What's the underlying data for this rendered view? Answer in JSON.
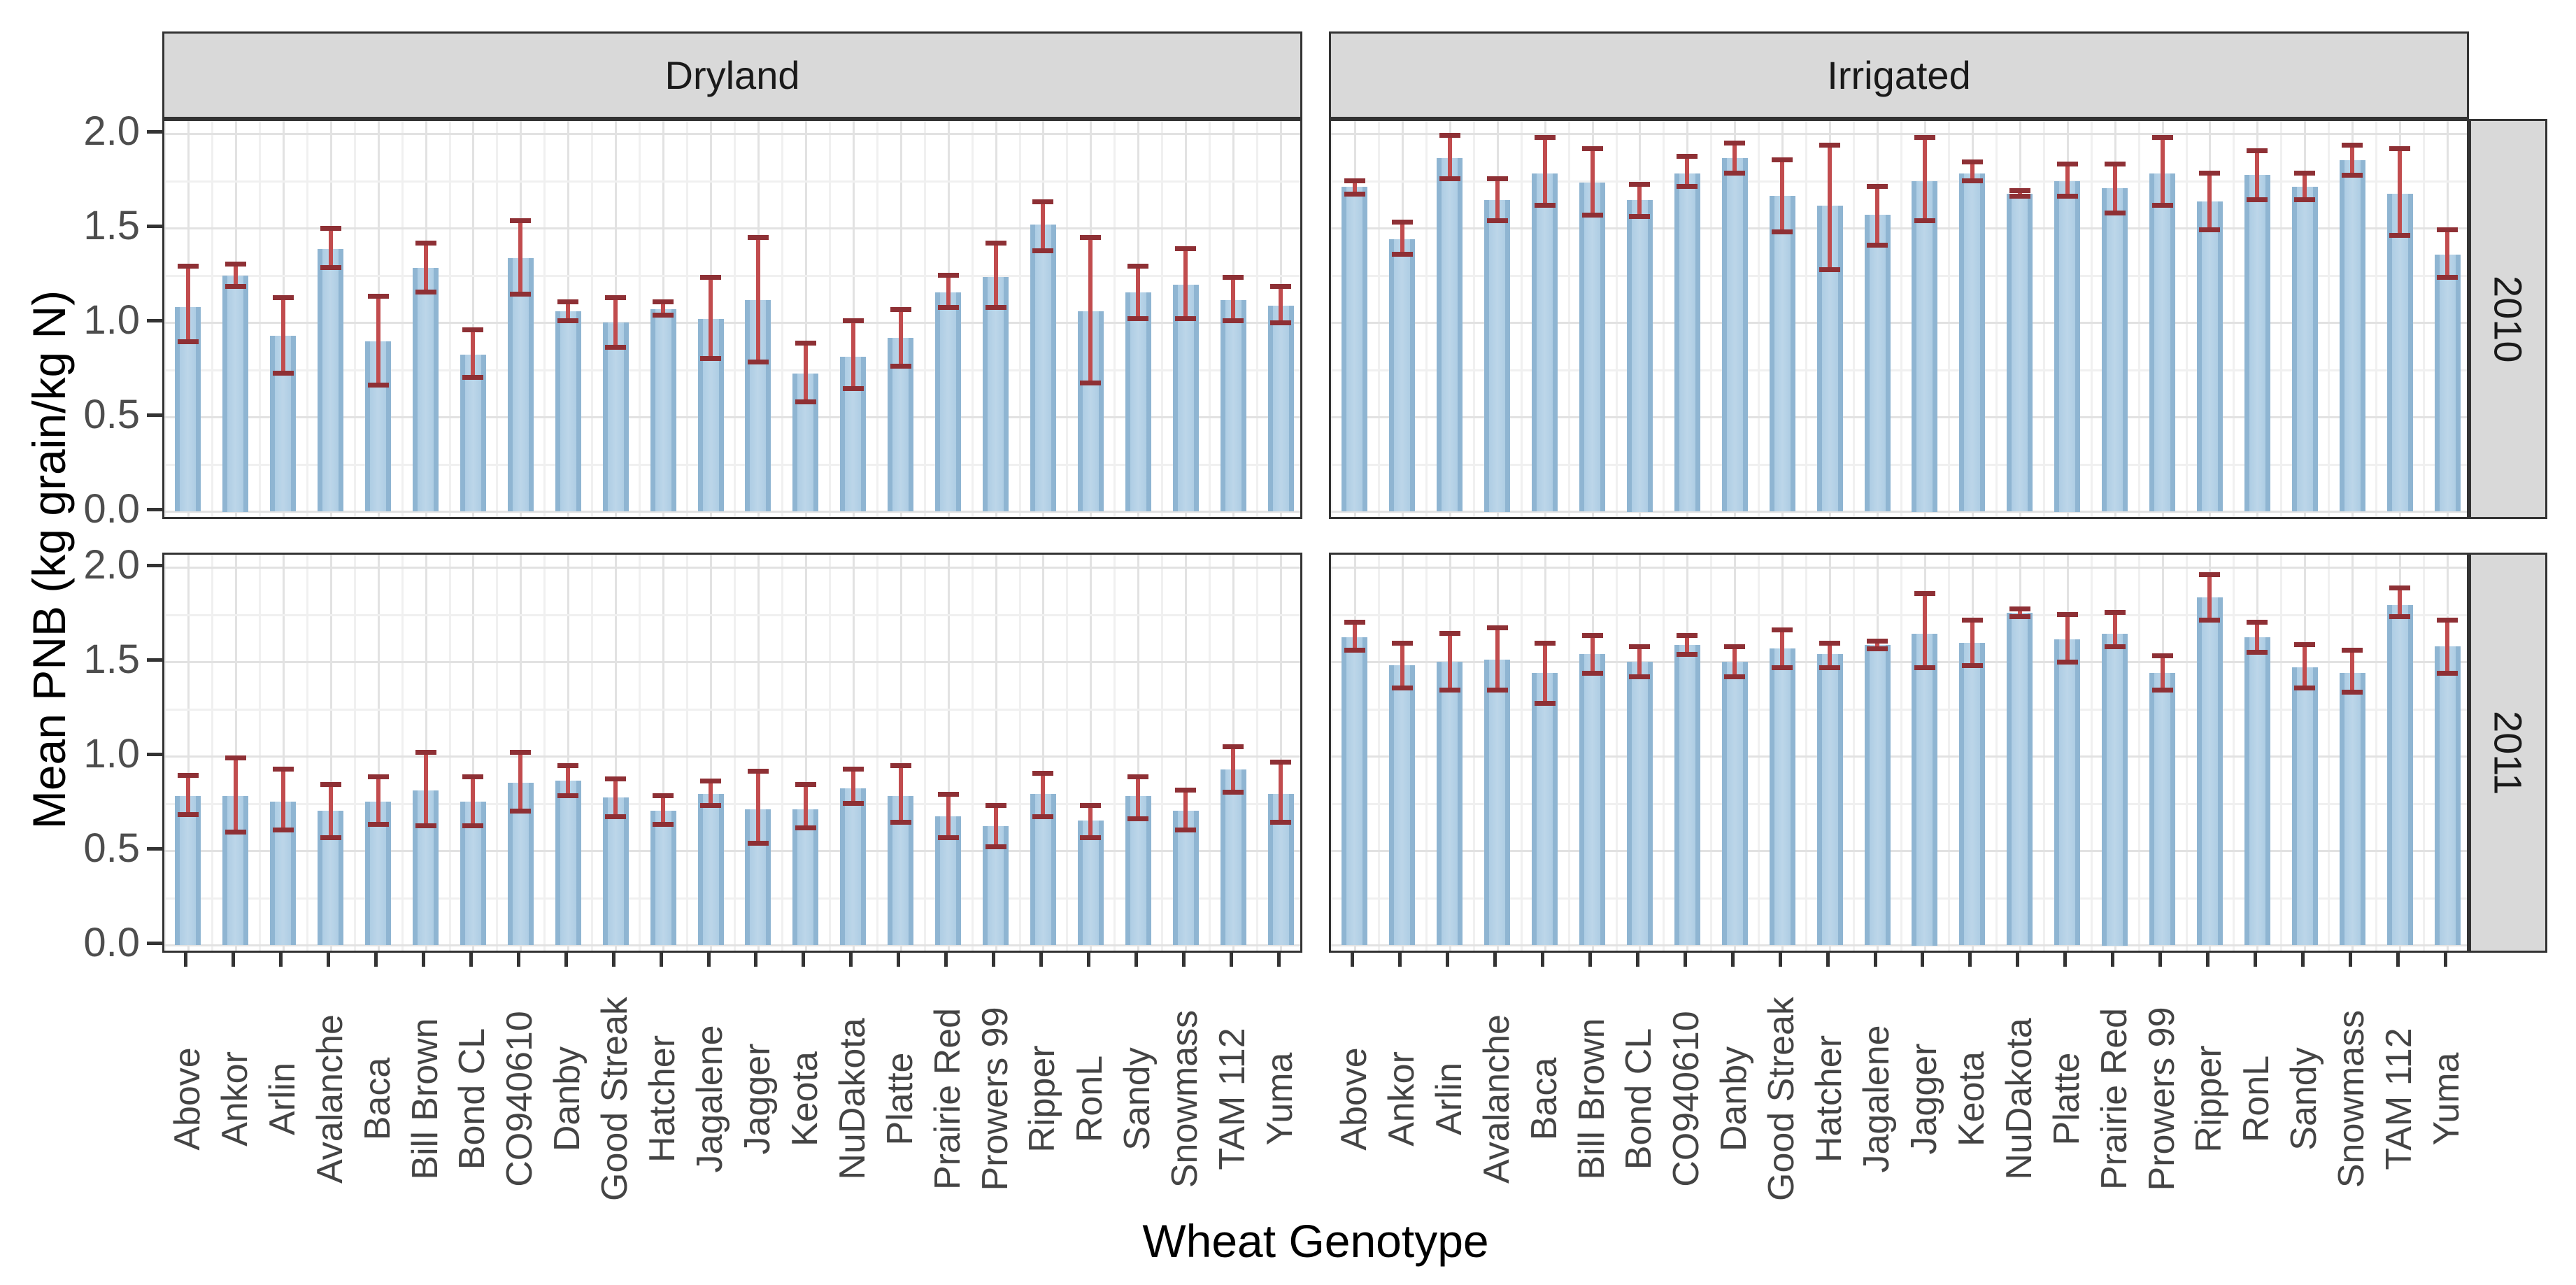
{
  "chart_data": {
    "type": "bar",
    "title": "",
    "xlabel": "Wheat Genotype",
    "ylabel": "Mean PNB (kg grain/kg N)",
    "facet_columns": [
      "Dryland",
      "Irrigated"
    ],
    "facet_rows": [
      "2010",
      "2011"
    ],
    "legend": "none",
    "grid": true,
    "error_bars": true,
    "categories": [
      "Above",
      "Ankor",
      "Arlin",
      "Avalanche",
      "Baca",
      "Bill Brown",
      "Bond CL",
      "CO940610",
      "Danby",
      "Good Streak",
      "Hatcher",
      "Jagalene",
      "Jagger",
      "Keota",
      "NuDakota",
      "Platte",
      "Prairie Red",
      "Prowers 99",
      "Ripper",
      "RonL",
      "Sandy",
      "Snowmass",
      "TAM 112",
      "Yuma"
    ],
    "y_axis": {
      "tick_labels": [
        "0.0",
        "0.5",
        "1.0",
        "1.5",
        "2.0"
      ],
      "tick_values": [
        0,
        0.5,
        1.0,
        1.5,
        2.0
      ],
      "minor_values": [
        0.25,
        0.75,
        1.25,
        1.75
      ],
      "ylim": [
        0,
        2.07
      ]
    },
    "colors": {
      "bar_fill": "#aecde4",
      "bar_edge": "#8fb5d2",
      "error_line": "#c14c4e",
      "error_cap": "#8e3035",
      "panel_bg": "#ffffff",
      "panel_border": "#333333",
      "strip_bg": "#d9d9d9",
      "grid_major": "#e2e2e2",
      "grid_minor": "#f0f0f0",
      "axis_text": "#4d4d4d",
      "title_text": "#000000"
    },
    "panels": [
      {
        "facet_col": "Dryland",
        "facet_row": "2010",
        "means": [
          1.08,
          1.25,
          0.93,
          1.39,
          0.9,
          1.29,
          0.83,
          1.34,
          1.06,
          1.0,
          1.07,
          1.02,
          1.12,
          0.73,
          0.82,
          0.92,
          1.16,
          1.24,
          1.52,
          1.06,
          1.16,
          1.2,
          1.12,
          1.09
        ],
        "err_lo": [
          0.9,
          1.19,
          0.73,
          1.29,
          0.67,
          1.16,
          0.71,
          1.15,
          1.01,
          0.87,
          1.04,
          0.81,
          0.79,
          0.58,
          0.65,
          0.77,
          1.08,
          1.08,
          1.38,
          0.68,
          1.02,
          1.02,
          1.01,
          1.0
        ],
        "err_hi": [
          1.3,
          1.31,
          1.13,
          1.5,
          1.14,
          1.42,
          0.96,
          1.54,
          1.11,
          1.13,
          1.11,
          1.24,
          1.45,
          0.89,
          1.01,
          1.07,
          1.25,
          1.42,
          1.64,
          1.45,
          1.3,
          1.39,
          1.24,
          1.19
        ]
      },
      {
        "facet_col": "Irrigated",
        "facet_row": "2010",
        "means": [
          1.72,
          1.44,
          1.87,
          1.65,
          1.79,
          1.74,
          1.65,
          1.79,
          1.87,
          1.67,
          1.62,
          1.57,
          1.75,
          1.79,
          1.68,
          1.75,
          1.71,
          1.79,
          1.64,
          1.78,
          1.72,
          1.86,
          1.68,
          1.36
        ],
        "err_lo": [
          1.68,
          1.36,
          1.76,
          1.54,
          1.62,
          1.57,
          1.56,
          1.72,
          1.79,
          1.48,
          1.28,
          1.41,
          1.54,
          1.75,
          1.67,
          1.67,
          1.58,
          1.62,
          1.49,
          1.65,
          1.65,
          1.78,
          1.46,
          1.24
        ],
        "err_hi": [
          1.75,
          1.53,
          1.99,
          1.76,
          1.98,
          1.92,
          1.73,
          1.88,
          1.95,
          1.86,
          1.94,
          1.72,
          1.98,
          1.85,
          1.7,
          1.84,
          1.84,
          1.98,
          1.79,
          1.91,
          1.79,
          1.94,
          1.92,
          1.49
        ]
      },
      {
        "facet_col": "Dryland",
        "facet_row": "2011",
        "means": [
          0.79,
          0.79,
          0.76,
          0.71,
          0.76,
          0.82,
          0.76,
          0.86,
          0.87,
          0.78,
          0.71,
          0.8,
          0.72,
          0.72,
          0.83,
          0.79,
          0.68,
          0.63,
          0.8,
          0.66,
          0.79,
          0.71,
          0.93,
          0.8
        ],
        "err_lo": [
          0.69,
          0.6,
          0.61,
          0.57,
          0.64,
          0.63,
          0.63,
          0.71,
          0.79,
          0.68,
          0.64,
          0.74,
          0.54,
          0.62,
          0.75,
          0.65,
          0.57,
          0.52,
          0.68,
          0.57,
          0.67,
          0.61,
          0.81,
          0.65
        ],
        "err_hi": [
          0.9,
          0.99,
          0.93,
          0.85,
          0.89,
          1.02,
          0.89,
          1.02,
          0.95,
          0.88,
          0.79,
          0.87,
          0.92,
          0.85,
          0.93,
          0.95,
          0.8,
          0.74,
          0.91,
          0.74,
          0.89,
          0.82,
          1.05,
          0.97
        ]
      },
      {
        "facet_col": "Irrigated",
        "facet_row": "2011",
        "means": [
          1.63,
          1.48,
          1.5,
          1.51,
          1.44,
          1.54,
          1.5,
          1.59,
          1.5,
          1.57,
          1.54,
          1.59,
          1.65,
          1.6,
          1.76,
          1.62,
          1.65,
          1.44,
          1.84,
          1.63,
          1.47,
          1.44,
          1.8,
          1.58
        ],
        "err_lo": [
          1.56,
          1.36,
          1.35,
          1.35,
          1.28,
          1.44,
          1.42,
          1.54,
          1.42,
          1.47,
          1.47,
          1.57,
          1.47,
          1.48,
          1.74,
          1.5,
          1.58,
          1.35,
          1.72,
          1.55,
          1.36,
          1.34,
          1.74,
          1.44
        ],
        "err_hi": [
          1.71,
          1.6,
          1.65,
          1.68,
          1.6,
          1.64,
          1.58,
          1.64,
          1.58,
          1.67,
          1.6,
          1.61,
          1.86,
          1.72,
          1.78,
          1.75,
          1.76,
          1.53,
          1.96,
          1.71,
          1.59,
          1.56,
          1.89,
          1.72
        ]
      }
    ]
  }
}
